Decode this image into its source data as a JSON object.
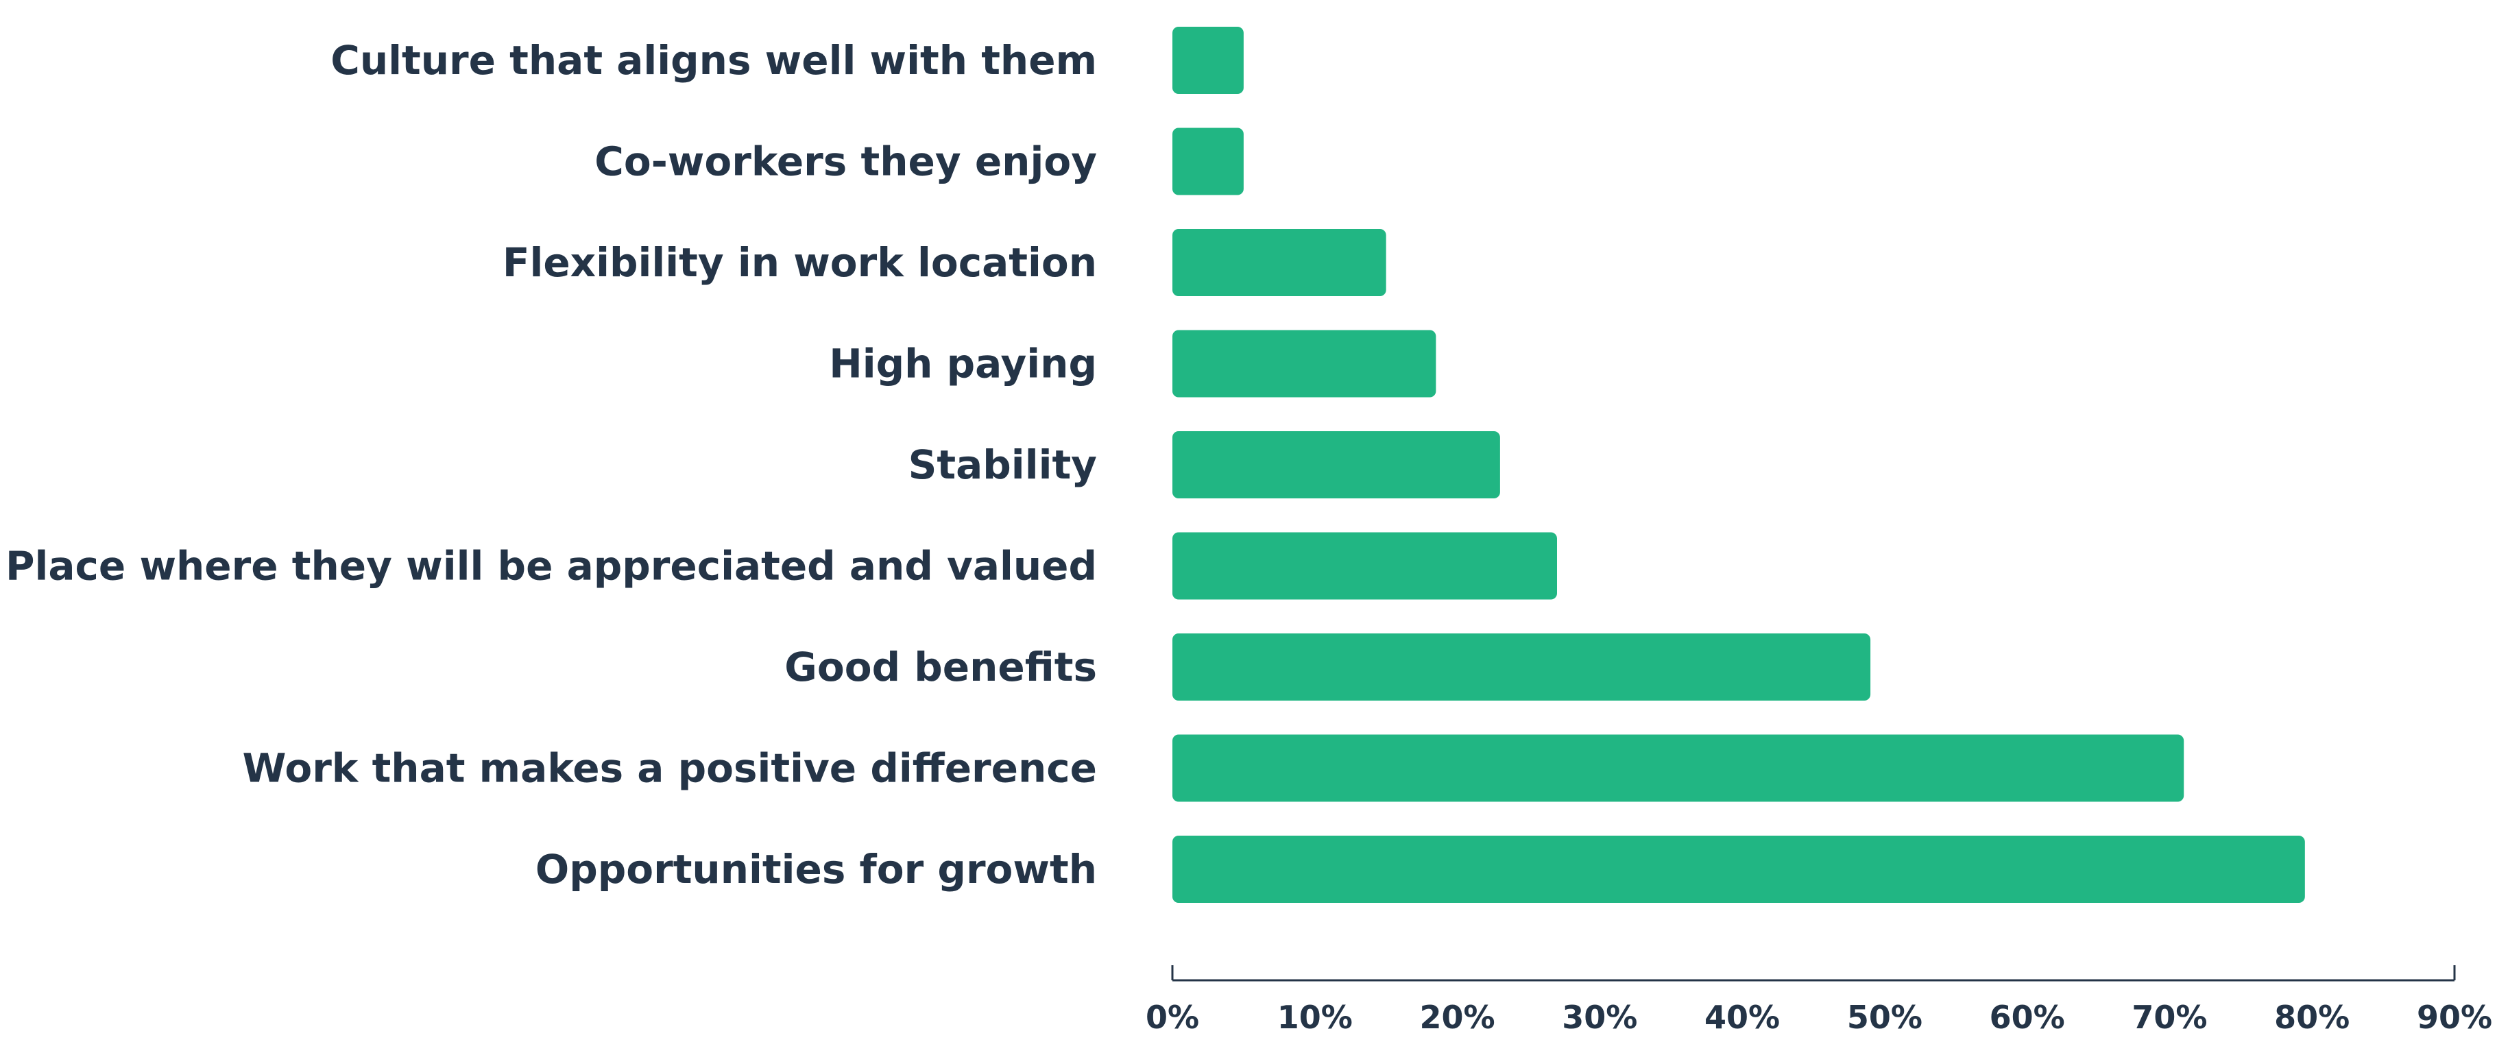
{
  "chart_data": {
    "type": "bar",
    "orientation": "horizontal",
    "categories": [
      "Culture that aligns well with them",
      "Co-workers they enjoy",
      "Flexibility in work location",
      "High paying",
      "Stability",
      "Place where they will be appreciated and valued",
      "Good benefits",
      "Work that makes a positive difference",
      "Opportunities for growth"
    ],
    "values": [
      5,
      5,
      15,
      18.5,
      23,
      27,
      49,
      71,
      79.5
    ],
    "xlim": [
      0,
      90
    ],
    "x_ticks": [
      0,
      10,
      20,
      30,
      40,
      50,
      60,
      70,
      80,
      90
    ],
    "x_tick_labels": [
      "0%",
      "10%",
      "20%",
      "30%",
      "40%",
      "50%",
      "60%",
      "70%",
      "80%",
      "90%"
    ],
    "grid": false,
    "colors": {
      "bar": "#21B683",
      "text": "#243447",
      "axis": "#243447"
    }
  }
}
